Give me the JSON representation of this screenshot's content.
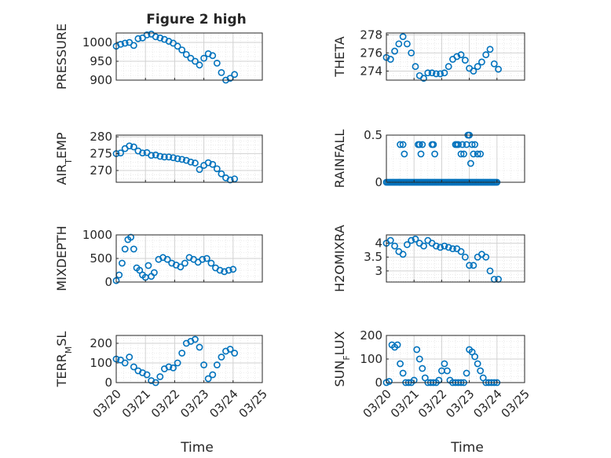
{
  "figure": {
    "title": "Figure 2 high",
    "xlabel": "Time"
  },
  "colors": {
    "marker": "#0072BD",
    "axes": "#262626",
    "grid": "#dcdcdc"
  },
  "chart_data": [
    {
      "type": "scatter",
      "ylabel": "PRESSURE",
      "ylim": [
        900,
        1025
      ],
      "yticks": [
        900,
        950,
        1000
      ],
      "x": [
        20.0,
        20.15,
        20.3,
        20.45,
        20.6,
        20.75,
        20.9,
        21.05,
        21.2,
        21.35,
        21.5,
        21.65,
        21.8,
        21.95,
        22.1,
        22.25,
        22.4,
        22.55,
        22.7,
        22.85,
        23.0,
        23.15,
        23.3,
        23.45,
        23.6,
        23.75,
        23.9,
        24.05
      ],
      "y": [
        990,
        995,
        998,
        1000,
        992,
        1010,
        1012,
        1020,
        1022,
        1015,
        1012,
        1008,
        1003,
        998,
        990,
        980,
        968,
        958,
        950,
        940,
        958,
        970,
        965,
        945,
        920,
        900,
        905,
        915
      ]
    },
    {
      "type": "scatter",
      "ylabel": "THETA",
      "ylim": [
        273,
        278.2
      ],
      "yticks": [
        274,
        276,
        278
      ],
      "x": [
        20.0,
        20.15,
        20.3,
        20.45,
        20.6,
        20.75,
        20.9,
        21.05,
        21.2,
        21.35,
        21.5,
        21.65,
        21.8,
        21.95,
        22.1,
        22.25,
        22.4,
        22.55,
        22.7,
        22.85,
        23.0,
        23.15,
        23.3,
        23.45,
        23.6,
        23.75,
        23.9,
        24.05
      ],
      "y": [
        275.5,
        275.3,
        276.2,
        277.0,
        277.8,
        277.0,
        276.0,
        274.5,
        273.5,
        273.2,
        273.8,
        273.8,
        273.7,
        273.7,
        273.8,
        274.5,
        275.3,
        275.6,
        275.8,
        275.2,
        274.3,
        274.0,
        274.5,
        275.0,
        275.8,
        276.4,
        274.8,
        274.2
      ]
    },
    {
      "type": "scatter",
      "ylabel": "AIR_TEMP",
      "ylim": [
        266.5,
        280.5
      ],
      "yticks": [
        270,
        275,
        280
      ],
      "x": [
        20.0,
        20.15,
        20.3,
        20.45,
        20.6,
        20.75,
        20.9,
        21.05,
        21.2,
        21.35,
        21.5,
        21.65,
        21.8,
        21.95,
        22.1,
        22.25,
        22.4,
        22.55,
        22.7,
        22.85,
        23.0,
        23.15,
        23.3,
        23.45,
        23.6,
        23.75,
        23.9,
        24.05
      ],
      "y": [
        275,
        275.2,
        276.5,
        277.3,
        277,
        275.8,
        275.2,
        275.3,
        274.5,
        274.6,
        274.2,
        274,
        274,
        273.8,
        273.5,
        273.3,
        273,
        272.5,
        272.2,
        270.3,
        271.5,
        272.3,
        271.8,
        270.5,
        269,
        267.8,
        267.2,
        267.5
      ]
    },
    {
      "type": "scatter",
      "ylabel": "RAINFALL",
      "ylim": [
        0,
        0.5
      ],
      "yticks": [
        0,
        0.5
      ],
      "x": [
        20.5,
        20.6,
        20.65,
        21.15,
        21.2,
        21.25,
        21.3,
        21.65,
        21.7,
        21.75,
        22.5,
        22.55,
        22.6,
        22.7,
        22.75,
        22.8,
        22.9,
        22.95,
        23.0,
        23.05,
        23.1,
        23.15,
        23.2,
        23.3,
        23.4
      ],
      "y": [
        0.4,
        0.4,
        0.3,
        0.4,
        0.4,
        0.3,
        0.4,
        0.4,
        0.4,
        0.3,
        0.4,
        0.4,
        0.4,
        0.3,
        0.4,
        0.3,
        0.4,
        0.5,
        0.5,
        0.2,
        0.4,
        0.3,
        0.4,
        0.3,
        0.3
      ]
    },
    {
      "type": "scatter",
      "ylabel": "MIXDEPTH",
      "ylim": [
        0,
        1000
      ],
      "yticks": [
        0,
        500,
        1000
      ],
      "x": [
        20.0,
        20.1,
        20.2,
        20.3,
        20.4,
        20.5,
        20.6,
        20.7,
        20.8,
        20.9,
        21.0,
        21.1,
        21.2,
        21.3,
        21.45,
        21.6,
        21.75,
        21.9,
        22.05,
        22.2,
        22.35,
        22.5,
        22.65,
        22.8,
        22.95,
        23.1,
        23.25,
        23.4,
        23.55,
        23.7,
        23.85,
        24.0
      ],
      "y": [
        30,
        150,
        400,
        700,
        900,
        950,
        700,
        300,
        250,
        150,
        100,
        350,
        120,
        200,
        480,
        520,
        480,
        400,
        360,
        320,
        400,
        520,
        480,
        420,
        480,
        500,
        400,
        300,
        250,
        220,
        250,
        270
      ]
    },
    {
      "type": "scatter",
      "ylabel": "H2OMIXRA",
      "ylim": [
        2.6,
        4.3
      ],
      "yticks": [
        3,
        3.5,
        4
      ],
      "x": [
        20.0,
        20.15,
        20.3,
        20.45,
        20.6,
        20.75,
        20.9,
        21.05,
        21.2,
        21.35,
        21.5,
        21.65,
        21.8,
        21.95,
        22.1,
        22.25,
        22.4,
        22.55,
        22.7,
        22.85,
        23.0,
        23.15,
        23.3,
        23.45,
        23.6,
        23.75,
        23.9,
        24.05
      ],
      "y": [
        4.0,
        4.1,
        3.9,
        3.7,
        3.6,
        3.95,
        4.1,
        4.15,
        4.0,
        3.9,
        4.1,
        4.0,
        3.9,
        3.85,
        3.9,
        3.85,
        3.8,
        3.8,
        3.7,
        3.5,
        3.2,
        3.2,
        3.5,
        3.6,
        3.5,
        3.0,
        2.7,
        2.7
      ]
    },
    {
      "type": "scatter",
      "ylabel": "TERR_MSL",
      "ylim": [
        0,
        240
      ],
      "yticks": [
        0,
        100,
        200
      ],
      "x": [
        20.0,
        20.15,
        20.3,
        20.45,
        20.6,
        20.75,
        20.9,
        21.05,
        21.2,
        21.35,
        21.5,
        21.65,
        21.8,
        21.95,
        22.1,
        22.25,
        22.4,
        22.55,
        22.7,
        22.85,
        23.0,
        23.15,
        23.3,
        23.45,
        23.6,
        23.75,
        23.9,
        24.05
      ],
      "y": [
        120,
        115,
        100,
        130,
        80,
        60,
        50,
        40,
        10,
        0,
        30,
        70,
        80,
        75,
        100,
        150,
        200,
        210,
        220,
        180,
        90,
        20,
        40,
        90,
        130,
        160,
        170,
        150
      ]
    },
    {
      "type": "scatter",
      "ylabel": "SUN_FLUX",
      "ylim": [
        0,
        200
      ],
      "yticks": [
        0,
        100,
        200
      ],
      "x": [
        20.0,
        20.1,
        20.2,
        20.3,
        20.4,
        20.5,
        20.6,
        20.7,
        20.8,
        20.9,
        21.0,
        21.1,
        21.2,
        21.3,
        21.4,
        21.5,
        21.6,
        21.7,
        21.8,
        21.9,
        22.0,
        22.1,
        22.2,
        22.3,
        22.4,
        22.5,
        22.6,
        22.7,
        22.8,
        22.9,
        23.0,
        23.1,
        23.2,
        23.3,
        23.4,
        23.5,
        23.6,
        23.7,
        23.8,
        23.9,
        24.0
      ],
      "y": [
        0,
        5,
        160,
        150,
        160,
        80,
        40,
        0,
        0,
        0,
        10,
        140,
        100,
        60,
        20,
        0,
        0,
        0,
        0,
        10,
        50,
        80,
        50,
        10,
        0,
        0,
        0,
        0,
        0,
        40,
        140,
        130,
        110,
        80,
        50,
        20,
        0,
        0,
        0,
        0,
        0
      ]
    }
  ],
  "xaxis": {
    "ticks": [
      "03/20",
      "03/21",
      "03/22",
      "03/23",
      "03/24",
      "03/25"
    ],
    "range": [
      "03/20",
      "03/25"
    ]
  }
}
